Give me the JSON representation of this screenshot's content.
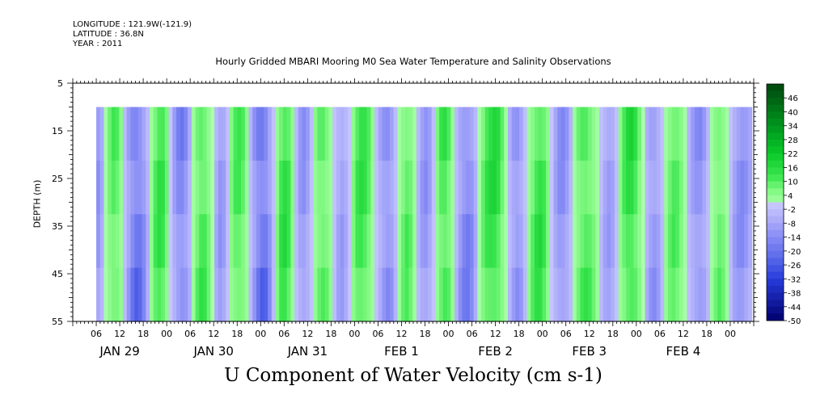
{
  "header": {
    "longitude": "LONGITUDE : 121.9W(-121.9)",
    "latitude": "LATITUDE : 36.8N",
    "year": "YEAR : 2011"
  },
  "chart_data": {
    "type": "heatmap",
    "title": "Hourly Gridded MBARI Mooring M0 Sea Water Temperature and Salinity Observations",
    "subtitle": "U Component of Water Velocity (cm s-1)",
    "ylabel": "DEPTH (m)",
    "xlabel": "",
    "ylim": [
      55,
      5
    ],
    "y_ticks": [
      5,
      15,
      25,
      35,
      45,
      55
    ],
    "y_data_range": [
      10,
      55
    ],
    "x_hour_range": [
      0,
      174
    ],
    "x_data_start_hour": 6,
    "x_hour_ticks": [
      "06",
      "12",
      "18",
      "00",
      "06",
      "12",
      "18",
      "00",
      "06",
      "12",
      "18",
      "00",
      "06",
      "12",
      "18",
      "00",
      "06",
      "12",
      "18",
      "00",
      "06",
      "12",
      "18",
      "00",
      "06",
      "12",
      "18",
      "00"
    ],
    "x_day_labels": [
      "JAN 29",
      "JAN 30",
      "JAN 31",
      "FEB  1",
      "FEB  2",
      "FEB  3",
      "FEB  4"
    ],
    "colorbar": {
      "labels": [
        "46",
        "40",
        "34",
        "28",
        "22",
        "16",
        "10",
        "4",
        "-2",
        "-8",
        "-14",
        "-20",
        "-26",
        "-32",
        "-38",
        "-44",
        "-50"
      ],
      "range": [
        -50,
        52
      ],
      "step": 6
    },
    "column_values": [
      -10,
      -6,
      1,
      6,
      9,
      8,
      4,
      -3,
      -10,
      -16,
      -19,
      -17,
      -12,
      -5,
      3,
      9,
      12,
      11,
      6,
      -1,
      -8,
      -13,
      -15,
      -12,
      -6,
      2,
      8,
      11,
      10,
      6,
      0,
      -6,
      -10,
      -8,
      -2,
      5,
      9,
      10,
      8,
      3,
      -4,
      -11,
      -17,
      -20,
      -18,
      -11,
      -3,
      5,
      11,
      13,
      10,
      4,
      -3,
      -9,
      -11,
      -8,
      -2,
      4,
      8,
      9,
      7,
      3,
      -2,
      -7,
      -9,
      -6,
      -1,
      5,
      10,
      12,
      11,
      8,
      3,
      -2,
      -7,
      -11,
      -13,
      -10,
      -4,
      2,
      7,
      9,
      7,
      2,
      -4,
      -9,
      -11,
      -8,
      -2,
      5,
      10,
      12,
      9,
      3,
      -4,
      -10,
      -14,
      -15,
      -12,
      -6,
      1,
      7,
      11,
      13,
      14,
      12,
      7,
      1,
      -5,
      -10,
      -12,
      -9,
      -3,
      3,
      8,
      12,
      13,
      10,
      5,
      -1,
      -7,
      -11,
      -12,
      -9,
      -4,
      2,
      7,
      10,
      11,
      9,
      6,
      2,
      -3,
      -7,
      -9,
      -7,
      -2,
      4,
      9,
      13,
      14,
      11,
      6,
      0,
      -6,
      -10,
      -11,
      -8,
      -3,
      3,
      7,
      9,
      8,
      5,
      1,
      -4,
      -8,
      -11,
      -12,
      -9,
      -4,
      2,
      6,
      8,
      6,
      2,
      -3,
      -8,
      -11,
      -12,
      -10,
      -7
    ]
  }
}
